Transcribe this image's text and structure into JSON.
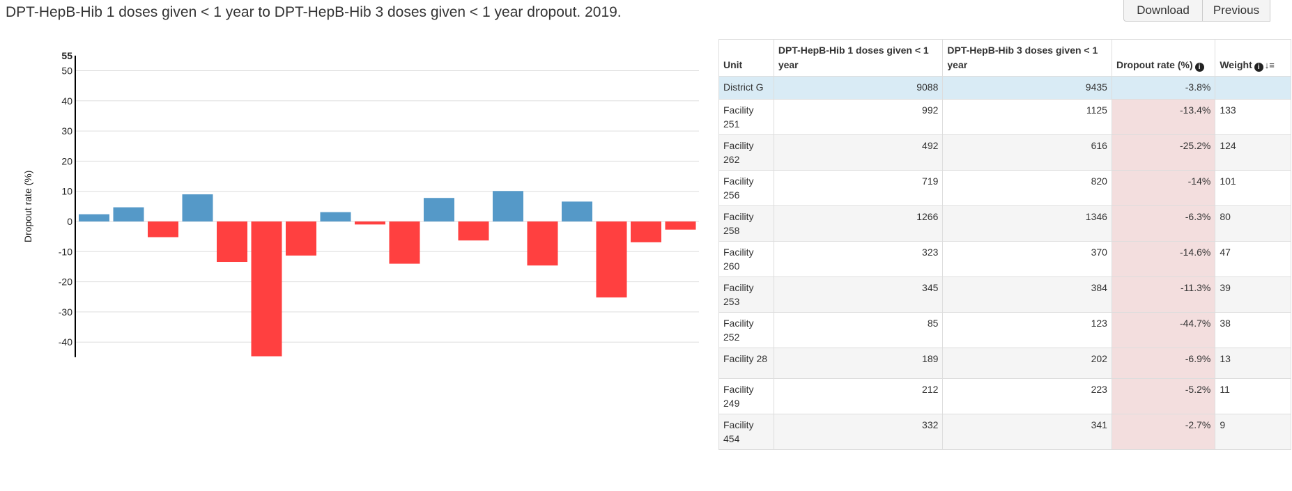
{
  "page": {
    "title": "DPT-HepB-Hib 1 doses given < 1 year to DPT-HepB-Hib 3 doses given < 1 year dropout. 2019."
  },
  "toolbar": {
    "download_label": "Download",
    "previous_label": "Previous"
  },
  "colors": {
    "positive": "#5599c8",
    "negative": "#ff4040",
    "total_row": "#d9ebf5",
    "dropout_cell": "#f3dede"
  },
  "icons": {
    "info": "info-circle-icon",
    "sort": "sort-descending-icon"
  },
  "chart_data": {
    "type": "bar",
    "ylabel": "Dropout rate (%)",
    "ylim": [
      -45,
      55
    ],
    "yticks": [
      -40,
      -30,
      -20,
      -10,
      0,
      10,
      20,
      30,
      40,
      50
    ],
    "ytick_top": "55",
    "grid": true,
    "values": [
      2.4,
      4.7,
      -5.2,
      9.0,
      -13.4,
      -44.7,
      -11.3,
      3.1,
      -1.0,
      -14.0,
      7.8,
      -6.3,
      10.1,
      -14.6,
      6.6,
      -25.2,
      -6.9,
      -2.7
    ]
  },
  "table": {
    "headers": {
      "unit": "Unit",
      "dose1": "DPT-HepB-Hib 1 doses given < 1 year",
      "dose3": "DPT-HepB-Hib 3 doses given < 1 year",
      "dropout": "Dropout rate (%)",
      "weight": "Weight"
    },
    "total": {
      "unit": "District G",
      "dose1": "9088",
      "dose3": "9435",
      "dropout": "-3.8%",
      "weight": ""
    },
    "rows": [
      {
        "unit": "Facility 251",
        "dose1": "992",
        "dose3": "1125",
        "dropout": "-13.4%",
        "weight": "133"
      },
      {
        "unit": "Facility 262",
        "dose1": "492",
        "dose3": "616",
        "dropout": "-25.2%",
        "weight": "124"
      },
      {
        "unit": "Facility 256",
        "dose1": "719",
        "dose3": "820",
        "dropout": "-14%",
        "weight": "101"
      },
      {
        "unit": "Facility 258",
        "dose1": "1266",
        "dose3": "1346",
        "dropout": "-6.3%",
        "weight": "80"
      },
      {
        "unit": "Facility 260",
        "dose1": "323",
        "dose3": "370",
        "dropout": "-14.6%",
        "weight": "47"
      },
      {
        "unit": "Facility 253",
        "dose1": "345",
        "dose3": "384",
        "dropout": "-11.3%",
        "weight": "39"
      },
      {
        "unit": "Facility 252",
        "dose1": "85",
        "dose3": "123",
        "dropout": "-44.7%",
        "weight": "38"
      },
      {
        "unit": "Facility 28",
        "dose1": "189",
        "dose3": "202",
        "dropout": "-6.9%",
        "weight": "13"
      },
      {
        "unit": "Facility 249",
        "dose1": "212",
        "dose3": "223",
        "dropout": "-5.2%",
        "weight": "11"
      },
      {
        "unit": "Facility 454",
        "dose1": "332",
        "dose3": "341",
        "dropout": "-2.7%",
        "weight": "9"
      }
    ]
  }
}
